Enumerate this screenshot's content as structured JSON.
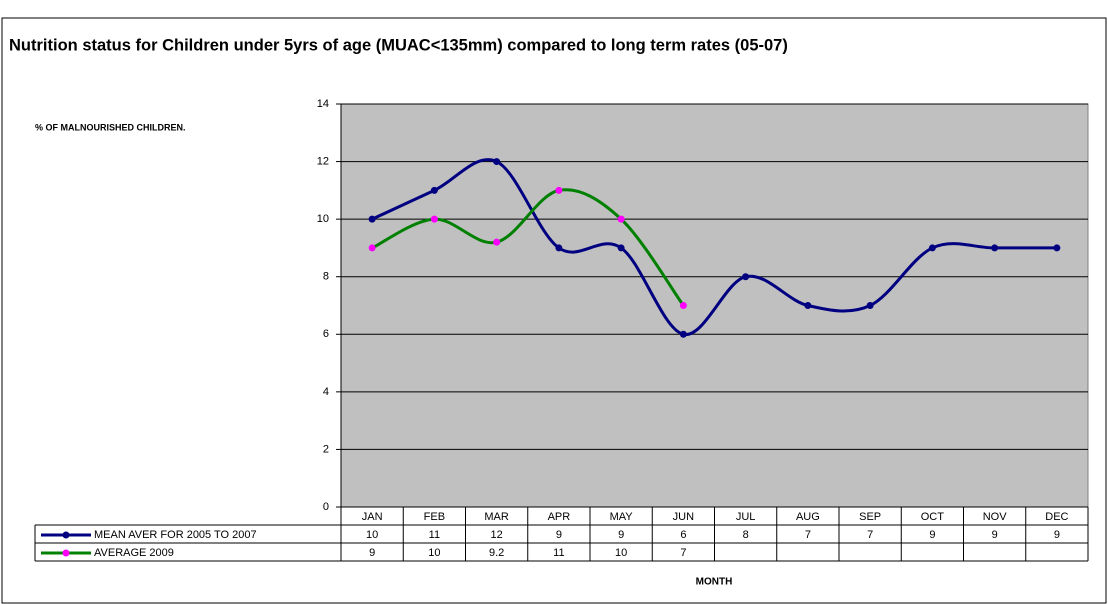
{
  "chart_data": {
    "type": "line",
    "title": "Nutrition status for Children under 5yrs of age (MUAC<135mm) compared to long term rates (05-07)",
    "y_label": "% OF MALNOURISHED CHILDREN.",
    "x_label": "MONTH",
    "categories": [
      "JAN",
      "FEB",
      "MAR",
      "APR",
      "MAY",
      "JUN",
      "JUL",
      "AUG",
      "SEP",
      "OCT",
      "NOV",
      "DEC"
    ],
    "series": [
      {
        "name": "MEAN AVER FOR 2005 TO 2007",
        "color": "#000080",
        "marker_color": "#000080",
        "values": [
          10,
          11,
          12,
          9,
          9,
          6,
          8,
          7,
          7,
          9,
          9,
          9
        ]
      },
      {
        "name": "AVERAGE 2009",
        "color": "#008000",
        "marker_color": "#ff00ff",
        "values": [
          9,
          10,
          9.2,
          11,
          10,
          7,
          null,
          null,
          null,
          null,
          null,
          null
        ]
      }
    ],
    "ylim": [
      0,
      14
    ],
    "yticks": [
      0,
      2,
      4,
      6,
      8,
      10,
      12,
      14
    ],
    "grid": true,
    "smooth": true,
    "data_table": true
  }
}
